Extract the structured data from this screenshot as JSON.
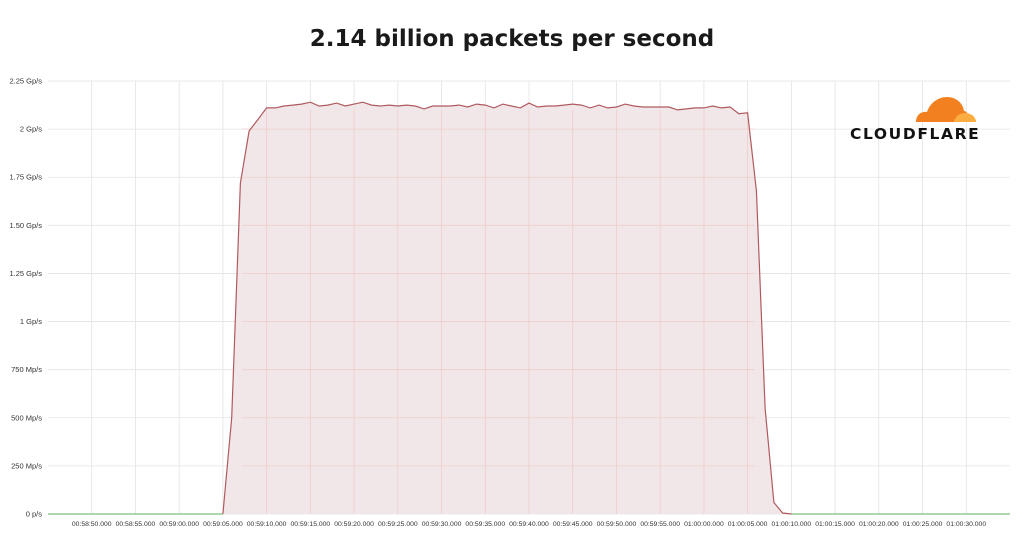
{
  "chart_data": {
    "type": "area",
    "title": "2.14 billion packets per second",
    "xlabel": "",
    "ylabel": "",
    "unit": "packets per second",
    "ylim": [
      0,
      2250000000.0
    ],
    "y_ticks": [
      {
        "value": 0,
        "label": "0 p/s"
      },
      {
        "value": 250000000,
        "label": "250 Mp/s"
      },
      {
        "value": 500000000,
        "label": "500 Mp/s"
      },
      {
        "value": 750000000,
        "label": "750 Mp/s"
      },
      {
        "value": 1000000000,
        "label": "1 Gp/s"
      },
      {
        "value": 1250000000,
        "label": "1.25 Gp/s"
      },
      {
        "value": 1500000000,
        "label": "1.50 Gp/s"
      },
      {
        "value": 1750000000,
        "label": "1.75 Gp/s"
      },
      {
        "value": 2000000000,
        "label": "2 Gp/s"
      },
      {
        "value": 2250000000,
        "label": "2.25 Gp/s"
      }
    ],
    "x_ticks": [
      "00:58:50.000",
      "00:58:55.000",
      "00:59:00.000",
      "00:59:05.000",
      "00:59:10.000",
      "00:59:15.000",
      "00:59:20.000",
      "00:59:25.000",
      "00:59:30.000",
      "00:59:35.000",
      "00:59:40.000",
      "00:59:45.000",
      "00:59:50.000",
      "00:59:55.000",
      "01:00:00.000",
      "01:00:05.000",
      "01:00:10.000",
      "01:00:15.000",
      "01:00:20.000",
      "01:00:25.000",
      "01:00:30.000"
    ],
    "xlim": [
      "00:58:45.000",
      "01:00:35.000"
    ],
    "grid": true,
    "series": [
      {
        "name": "",
        "color": "#b05a5f",
        "fill": "#f0e4e5",
        "points": [
          {
            "t": "00:58:45.000",
            "v": 0
          },
          {
            "t": "00:59:05.000",
            "v": 0
          },
          {
            "t": "00:59:06.000",
            "v": 500000000
          },
          {
            "t": "00:59:07.000",
            "v": 1720000000
          },
          {
            "t": "00:59:08.000",
            "v": 1990000000
          },
          {
            "t": "00:59:09.000",
            "v": 2050000000
          },
          {
            "t": "00:59:10.000",
            "v": 2110000000
          },
          {
            "t": "00:59:11.000",
            "v": 2110000000
          },
          {
            "t": "00:59:12.000",
            "v": 2120000000
          },
          {
            "t": "00:59:13.000",
            "v": 2125000000
          },
          {
            "t": "00:59:14.000",
            "v": 2130000000
          },
          {
            "t": "00:59:15.000",
            "v": 2140000000
          },
          {
            "t": "00:59:16.000",
            "v": 2120000000
          },
          {
            "t": "00:59:17.000",
            "v": 2125000000
          },
          {
            "t": "00:59:18.000",
            "v": 2135000000
          },
          {
            "t": "00:59:19.000",
            "v": 2120000000
          },
          {
            "t": "00:59:20.000",
            "v": 2130000000
          },
          {
            "t": "00:59:21.000",
            "v": 2140000000
          },
          {
            "t": "00:59:22.000",
            "v": 2125000000
          },
          {
            "t": "00:59:23.000",
            "v": 2120000000
          },
          {
            "t": "00:59:24.000",
            "v": 2125000000
          },
          {
            "t": "00:59:25.000",
            "v": 2120000000
          },
          {
            "t": "00:59:26.000",
            "v": 2125000000
          },
          {
            "t": "00:59:27.000",
            "v": 2120000000
          },
          {
            "t": "00:59:28.000",
            "v": 2105000000
          },
          {
            "t": "00:59:29.000",
            "v": 2120000000
          },
          {
            "t": "00:59:30.000",
            "v": 2120000000
          },
          {
            "t": "00:59:31.000",
            "v": 2120000000
          },
          {
            "t": "00:59:32.000",
            "v": 2125000000
          },
          {
            "t": "00:59:33.000",
            "v": 2115000000
          },
          {
            "t": "00:59:34.000",
            "v": 2130000000
          },
          {
            "t": "00:59:35.000",
            "v": 2125000000
          },
          {
            "t": "00:59:36.000",
            "v": 2110000000
          },
          {
            "t": "00:59:37.000",
            "v": 2130000000
          },
          {
            "t": "00:59:38.000",
            "v": 2120000000
          },
          {
            "t": "00:59:39.000",
            "v": 2110000000
          },
          {
            "t": "00:59:40.000",
            "v": 2135000000
          },
          {
            "t": "00:59:41.000",
            "v": 2115000000
          },
          {
            "t": "00:59:42.000",
            "v": 2120000000
          },
          {
            "t": "00:59:43.000",
            "v": 2120000000
          },
          {
            "t": "00:59:44.000",
            "v": 2125000000
          },
          {
            "t": "00:59:45.000",
            "v": 2130000000
          },
          {
            "t": "00:59:46.000",
            "v": 2125000000
          },
          {
            "t": "00:59:47.000",
            "v": 2110000000
          },
          {
            "t": "00:59:48.000",
            "v": 2125000000
          },
          {
            "t": "00:59:49.000",
            "v": 2110000000
          },
          {
            "t": "00:59:50.000",
            "v": 2115000000
          },
          {
            "t": "00:59:51.000",
            "v": 2130000000
          },
          {
            "t": "00:59:52.000",
            "v": 2120000000
          },
          {
            "t": "00:59:53.000",
            "v": 2115000000
          },
          {
            "t": "00:59:54.000",
            "v": 2115000000
          },
          {
            "t": "00:59:55.000",
            "v": 2115000000
          },
          {
            "t": "00:59:56.000",
            "v": 2115000000
          },
          {
            "t": "00:59:57.000",
            "v": 2100000000
          },
          {
            "t": "00:59:58.000",
            "v": 2105000000
          },
          {
            "t": "00:59:59.000",
            "v": 2110000000
          },
          {
            "t": "01:00:00.000",
            "v": 2110000000
          },
          {
            "t": "01:00:01.000",
            "v": 2120000000
          },
          {
            "t": "01:00:02.000",
            "v": 2110000000
          },
          {
            "t": "01:00:03.000",
            "v": 2115000000
          },
          {
            "t": "01:00:04.000",
            "v": 2080000000
          },
          {
            "t": "01:00:05.000",
            "v": 2085000000
          },
          {
            "t": "01:00:06.000",
            "v": 1680000000
          },
          {
            "t": "01:00:07.000",
            "v": 550000000
          },
          {
            "t": "01:00:08.000",
            "v": 60000000
          },
          {
            "t": "01:00:09.000",
            "v": 5000000
          },
          {
            "t": "01:00:10.000",
            "v": 0
          },
          {
            "t": "01:00:35.000",
            "v": 0
          }
        ]
      }
    ]
  },
  "logo": {
    "text": "CLOUDFLARE",
    "icon": "cloud-icon",
    "colors": {
      "primary": "#f38020",
      "secondary": "#fbad41"
    }
  },
  "colors": {
    "grid": "#e3e3e3",
    "grid_red": "#f1cccc",
    "baseline_green": "#7fbf7f"
  }
}
